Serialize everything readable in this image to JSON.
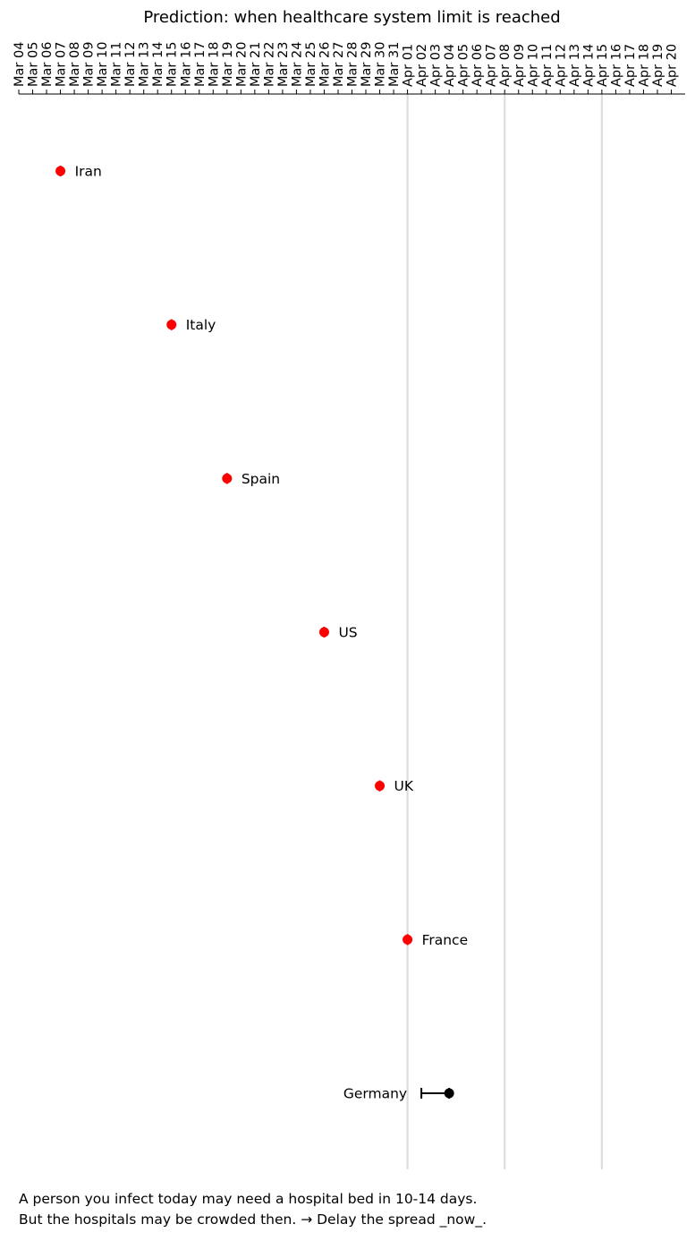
{
  "chart_data": {
    "type": "scatter",
    "title": "Prediction: when healthcare system limit is reached",
    "x_tick_labels": [
      "Mar 04",
      "Mar 05",
      "Mar 06",
      "Mar 07",
      "Mar 08",
      "Mar 09",
      "Mar 10",
      "Mar 11",
      "Mar 12",
      "Mar 13",
      "Mar 14",
      "Mar 15",
      "Mar 16",
      "Mar 17",
      "Mar 18",
      "Mar 19",
      "Mar 20",
      "Mar 21",
      "Mar 22",
      "Mar 23",
      "Mar 24",
      "Mar 25",
      "Mar 26",
      "Mar 27",
      "Mar 28",
      "Mar 29",
      "Mar 30",
      "Mar 31",
      "Apr 01",
      "Apr 02",
      "Apr 03",
      "Apr 04",
      "Apr 05",
      "Apr 06",
      "Apr 07",
      "Apr 08",
      "Apr 09",
      "Apr 10",
      "Apr 11",
      "Apr 12",
      "Apr 13",
      "Apr 14",
      "Apr 15",
      "Apr 16",
      "Apr 17",
      "Apr 18",
      "Apr 19",
      "Apr 20"
    ],
    "xlim": [
      "2020-03-04",
      "2020-04-21"
    ],
    "x_axis_position": "top",
    "vertical_reference_lines": [
      "2020-04-01",
      "2020-04-08",
      "2020-04-15"
    ],
    "points": [
      {
        "country": "Iran",
        "date": "2020-03-07",
        "range": [
          "2020-03-07",
          "2020-03-07"
        ],
        "color": "#ff0000",
        "label_side": "right"
      },
      {
        "country": "Italy",
        "date": "2020-03-15",
        "range": [
          "2020-03-15",
          "2020-03-15"
        ],
        "color": "#ff0000",
        "label_side": "right"
      },
      {
        "country": "Spain",
        "date": "2020-03-19",
        "range": [
          "2020-03-19",
          "2020-03-19"
        ],
        "color": "#ff0000",
        "label_side": "right"
      },
      {
        "country": "US",
        "date": "2020-03-26",
        "range": [
          "2020-03-26",
          "2020-03-26"
        ],
        "color": "#ff0000",
        "label_side": "right"
      },
      {
        "country": "UK",
        "date": "2020-03-30",
        "range": [
          "2020-03-30",
          "2020-03-30"
        ],
        "color": "#ff0000",
        "label_side": "right"
      },
      {
        "country": "France",
        "date": "2020-04-01",
        "range": [
          "2020-04-01",
          "2020-04-01"
        ],
        "color": "#ff0000",
        "label_side": "right"
      },
      {
        "country": "Germany",
        "date": "2020-04-04",
        "range": [
          "2020-04-02",
          "2020-04-04"
        ],
        "color": "#000000",
        "label_side": "left"
      }
    ],
    "grid": false,
    "legend": "none"
  },
  "caption": {
    "line1": "A person you infect today may need a hospital bed in 10-14 days.",
    "line2": "But the hospitals may be crowded then. → Delay the spread _now_."
  }
}
